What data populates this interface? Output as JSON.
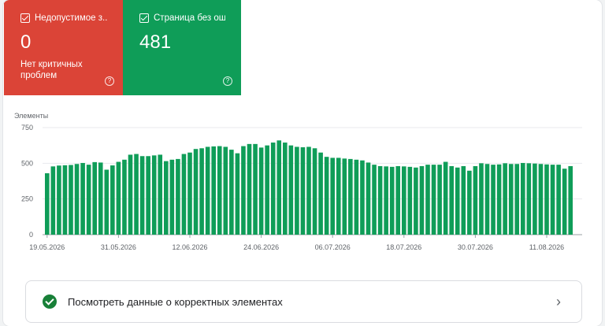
{
  "tiles": [
    {
      "label": "Недопустимое з...",
      "value": "0",
      "sublabel": "Нет критичных проблем",
      "color": "#db4437",
      "help_icon": "question-circle-icon"
    },
    {
      "label": "Страница без ош...",
      "value": "481",
      "color": "#0f9d58",
      "help_icon": "question-circle-icon"
    }
  ],
  "details_row": {
    "label": "Посмотреть данные о корректных элементах",
    "icon": "check-circle-icon",
    "chevron": "chevron-right-icon"
  },
  "chart_data": {
    "type": "bar",
    "ylabel": "Элементы",
    "ylim": [
      0,
      750
    ],
    "yticks": [
      "0",
      "250",
      "500",
      "750"
    ],
    "xticks": [
      "19.05.2026",
      "31.05.2026",
      "12.06.2026",
      "24.06.2026",
      "06.07.2026",
      "18.07.2026",
      "30.07.2026",
      "11.08.2026"
    ],
    "color": "#0f9d58",
    "grid": true,
    "values": [
      430,
      478,
      484,
      486,
      488,
      495,
      502,
      490,
      508,
      505,
      455,
      485,
      510,
      525,
      560,
      565,
      550,
      550,
      555,
      560,
      515,
      525,
      530,
      565,
      575,
      600,
      605,
      615,
      618,
      620,
      615,
      595,
      570,
      620,
      635,
      635,
      610,
      625,
      645,
      660,
      645,
      625,
      615,
      612,
      615,
      605,
      575,
      545,
      538,
      538,
      533,
      530,
      525,
      520,
      505,
      490,
      480,
      478,
      475,
      480,
      478,
      475,
      470,
      480,
      490,
      490,
      490,
      510,
      480,
      470,
      480,
      448,
      480,
      500,
      495,
      490,
      492,
      500,
      495,
      495,
      502,
      500,
      498,
      495,
      492,
      490,
      490,
      462,
      480
    ]
  }
}
